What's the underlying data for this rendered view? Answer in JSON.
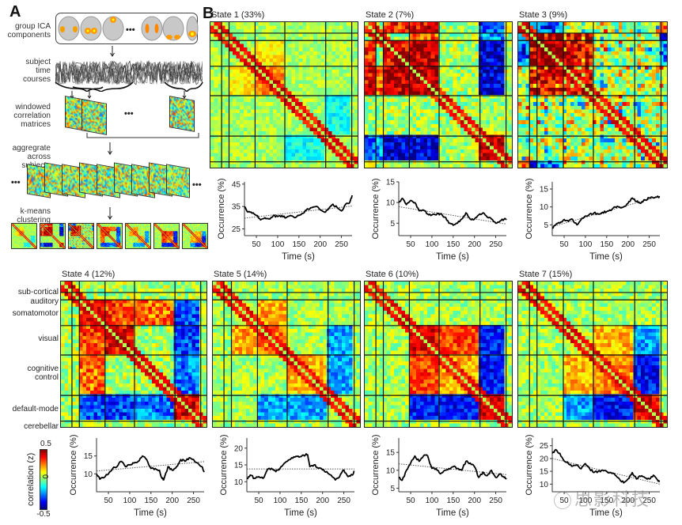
{
  "figure": {
    "panel_a": {
      "letter": "A",
      "steps": [
        {
          "label_lines": [
            "group ICA",
            "components"
          ]
        },
        {
          "label_lines": [
            "subject",
            "time",
            "courses"
          ]
        },
        {
          "label_lines": [
            "windowed",
            "correlation",
            "matrices"
          ]
        },
        {
          "label_lines": [
            "aggregrate",
            "across",
            "subjects"
          ]
        },
        {
          "label_lines": [
            "k-means",
            "clustering"
          ]
        }
      ],
      "ellipsis": "•••"
    },
    "panel_b": {
      "letter": "B"
    },
    "network_labels": [
      "sub-cortical",
      "auditory",
      "somatomotor",
      "visual",
      "cognitive control",
      "default-mode",
      "cerebellar"
    ],
    "colorbar": {
      "label": "correlation (z)",
      "max": "0.5",
      "mid": "0",
      "min": "-0.5",
      "colors": [
        "#00007f",
        "#0000ff",
        "#0080ff",
        "#00ffff",
        "#80ff80",
        "#ffff00",
        "#ff8000",
        "#ff0000",
        "#7f0000"
      ]
    },
    "watermark": "思影科技"
  },
  "chart_data": [
    {
      "type": "line",
      "title": "State 1 (33%)",
      "xlabel": "Time (s)",
      "ylabel": "Occurrence (%)",
      "xlim": [
        22,
        275
      ],
      "ylim": [
        22,
        46
      ],
      "xticks": [
        50,
        100,
        150,
        200,
        250
      ],
      "yticks": [
        25,
        35,
        45
      ],
      "x": [
        22,
        30,
        40,
        50,
        60,
        70,
        80,
        90,
        100,
        110,
        120,
        130,
        140,
        150,
        160,
        170,
        180,
        190,
        200,
        210,
        220,
        230,
        240,
        250,
        260,
        270,
        275
      ],
      "series": [
        {
          "name": "occurrence",
          "values": [
            35,
            32.5,
            32,
            31,
            29,
            30,
            29.5,
            31,
            30.5,
            31,
            30,
            31,
            30,
            31,
            32,
            34,
            34.5,
            35,
            33.5,
            32.5,
            34,
            36,
            34.5,
            33,
            36,
            37,
            40
          ]
        }
      ],
      "trend": {
        "x": [
          22,
          275
        ],
        "y": [
          29.8,
          35.2
        ]
      }
    },
    {
      "type": "line",
      "title": "State 2 (7%)",
      "xlabel": "Time (s)",
      "ylabel": "Occurrence (%)",
      "xlim": [
        22,
        275
      ],
      "ylim": [
        2,
        15
      ],
      "xticks": [
        50,
        100,
        150,
        200,
        250
      ],
      "yticks": [
        5,
        10,
        15
      ],
      "x": [
        22,
        30,
        40,
        50,
        60,
        70,
        80,
        90,
        100,
        110,
        120,
        130,
        140,
        150,
        160,
        170,
        180,
        190,
        200,
        210,
        220,
        230,
        240,
        250,
        260,
        270,
        275
      ],
      "series": [
        {
          "name": "occurrence",
          "values": [
            10,
            11,
            9.5,
            10.5,
            10,
            8,
            8.2,
            7.2,
            7,
            7,
            7.3,
            6.5,
            5,
            4.5,
            5,
            6,
            7.5,
            6,
            6,
            7,
            7.5,
            6.5,
            6,
            5,
            5.5,
            6,
            5.8
          ]
        }
      ],
      "trend": {
        "x": [
          22,
          275
        ],
        "y": [
          9.0,
          4.8
        ]
      }
    },
    {
      "type": "line",
      "title": "State 3 (9%)",
      "xlabel": "Time (s)",
      "ylabel": "Occurrence (%)",
      "xlim": [
        22,
        275
      ],
      "ylim": [
        2,
        17
      ],
      "xticks": [
        50,
        100,
        150,
        200,
        250
      ],
      "yticks": [
        5,
        10,
        15
      ],
      "x": [
        22,
        30,
        40,
        50,
        60,
        70,
        80,
        90,
        100,
        110,
        120,
        130,
        140,
        150,
        160,
        170,
        180,
        190,
        200,
        210,
        220,
        230,
        240,
        250,
        260,
        270,
        275
      ],
      "series": [
        {
          "name": "occurrence",
          "values": [
            4,
            5,
            5.5,
            6.5,
            6,
            6.5,
            5,
            6.5,
            7.5,
            8,
            8.3,
            8,
            8.5,
            8.7,
            9,
            10,
            10,
            10,
            11,
            12.5,
            11.5,
            11,
            12,
            12.5,
            12.5,
            13,
            12.8
          ]
        }
      ],
      "trend": {
        "x": [
          22,
          275
        ],
        "y": [
          4.5,
          13.0
        ]
      }
    },
    {
      "type": "line",
      "title": "State 4 (12%)",
      "xlabel": "Time (s)",
      "ylabel": "Occurrence (%)",
      "xlim": [
        22,
        275
      ],
      "ylim": [
        5,
        20
      ],
      "xticks": [
        50,
        100,
        150,
        200,
        250
      ],
      "yticks": [
        10,
        15
      ],
      "x": [
        22,
        30,
        40,
        50,
        60,
        70,
        80,
        90,
        100,
        110,
        120,
        130,
        140,
        150,
        160,
        170,
        175,
        180,
        190,
        200,
        210,
        220,
        230,
        240,
        250,
        260,
        270,
        275
      ],
      "series": [
        {
          "name": "occurrence",
          "values": [
            10,
            8.5,
            9,
            10,
            11.5,
            12,
            13.5,
            12,
            12.5,
            13,
            13.5,
            15,
            14,
            11.5,
            11.5,
            11,
            9,
            8.3,
            12,
            11,
            12,
            14,
            13.5,
            14.5,
            14,
            13,
            12,
            10.5
          ]
        }
      ],
      "trend": {
        "x": [
          22,
          275
        ],
        "y": [
          10.8,
          13.4
        ]
      }
    },
    {
      "type": "line",
      "title": "State 5 (14%)",
      "xlabel": "Time (s)",
      "ylabel": "Occurrence (%)",
      "xlim": [
        22,
        275
      ],
      "ylim": [
        7,
        23
      ],
      "xticks": [
        50,
        100,
        150,
        200,
        250
      ],
      "yticks": [
        10,
        15,
        20
      ],
      "x": [
        22,
        30,
        40,
        50,
        60,
        70,
        80,
        90,
        100,
        110,
        120,
        130,
        140,
        150,
        160,
        165,
        170,
        180,
        190,
        200,
        210,
        220,
        230,
        240,
        250,
        260,
        270,
        275
      ],
      "series": [
        {
          "name": "occurrence",
          "values": [
            11,
            12,
            11,
            11.5,
            11,
            13.5,
            14,
            13,
            14,
            15.5,
            16.5,
            17,
            17.5,
            17.5,
            18,
            18,
            14.5,
            15,
            14,
            13.5,
            13,
            12,
            10.5,
            11.5,
            13.5,
            11.5,
            12,
            13
          ]
        }
      ],
      "trend": {
        "x": [
          22,
          275
        ],
        "y": [
          13.8,
          13.8
        ]
      }
    },
    {
      "type": "line",
      "title": "State 6 (10%)",
      "xlabel": "Time (s)",
      "ylabel": "Occurrence (%)",
      "xlim": [
        22,
        275
      ],
      "ylim": [
        4,
        19
      ],
      "xticks": [
        50,
        100,
        150,
        200,
        250
      ],
      "yticks": [
        5,
        10,
        15
      ],
      "x": [
        22,
        30,
        40,
        50,
        60,
        70,
        80,
        90,
        100,
        110,
        120,
        130,
        140,
        150,
        160,
        170,
        180,
        190,
        200,
        210,
        220,
        230,
        240,
        250,
        260,
        270,
        275
      ],
      "series": [
        {
          "name": "occurrence",
          "values": [
            8,
            7.2,
            10,
            12,
            14,
            12.5,
            14,
            14,
            10.5,
            10.5,
            9,
            10,
            10.5,
            11,
            10.5,
            10,
            12.5,
            12,
            11,
            8,
            9.5,
            8.5,
            10,
            8,
            9,
            8,
            7.5
          ]
        }
      ],
      "trend": {
        "x": [
          22,
          275
        ],
        "y": [
          11.8,
          8.8
        ]
      }
    },
    {
      "type": "line",
      "title": "State 7 (15%)",
      "xlabel": "Time (s)",
      "ylabel": "Occurrence (%)",
      "xlim": [
        22,
        275
      ],
      "ylim": [
        7,
        28
      ],
      "xticks": [
        50,
        100,
        150,
        200,
        250
      ],
      "yticks": [
        10,
        15,
        20,
        25
      ],
      "x": [
        22,
        30,
        40,
        50,
        60,
        70,
        80,
        90,
        100,
        110,
        120,
        130,
        140,
        150,
        160,
        170,
        180,
        190,
        200,
        210,
        220,
        230,
        240,
        250,
        260,
        270,
        275
      ],
      "series": [
        {
          "name": "occurrence",
          "values": [
            22,
            23.5,
            22,
            19,
            18,
            17,
            17.5,
            16,
            18,
            16,
            14.5,
            15,
            15.5,
            15,
            14.5,
            13.5,
            12,
            10.5,
            12,
            14.5,
            12,
            13,
            12.5,
            12,
            13.5,
            11.5,
            11
          ]
        }
      ],
      "trend": {
        "x": [
          22,
          275
        ],
        "y": [
          20,
          10
        ]
      }
    }
  ]
}
